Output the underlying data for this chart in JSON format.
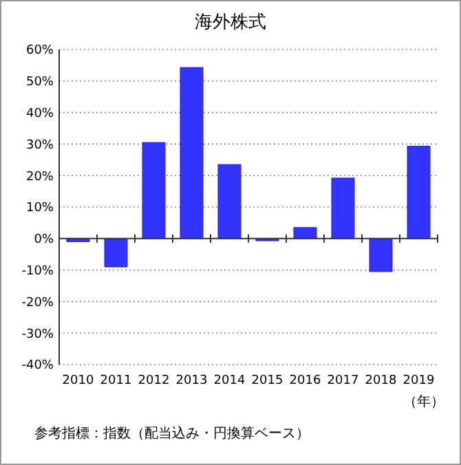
{
  "chart_data": {
    "type": "bar",
    "title": "海外株式",
    "xlabel": "（年）",
    "categories": [
      "2010",
      "2011",
      "2012",
      "2013",
      "2014",
      "2015",
      "2016",
      "2017",
      "2018",
      "2019"
    ],
    "values": [
      -1.0,
      -9,
      30.5,
      54.3,
      23.5,
      -0.7,
      3.5,
      19.2,
      -10.5,
      29.3
    ],
    "color": "#3333ff",
    "ylim": [
      -40,
      60
    ],
    "yticks": [
      {
        "value": -40,
        "label": "-40%"
      },
      {
        "value": -30,
        "label": "-30%"
      },
      {
        "value": -20,
        "label": "-20%"
      },
      {
        "value": -10,
        "label": "-10%"
      },
      {
        "value": 0,
        "label": "0%"
      },
      {
        "value": 10,
        "label": "10%"
      },
      {
        "value": 20,
        "label": "20%"
      },
      {
        "value": 30,
        "label": "30%"
      },
      {
        "value": 40,
        "label": "40%"
      },
      {
        "value": 50,
        "label": "50%"
      },
      {
        "value": 60,
        "label": "60%"
      }
    ],
    "grid": "y",
    "annotations": [
      "参考指標：指数（配当込み・円換算ベース）"
    ]
  }
}
